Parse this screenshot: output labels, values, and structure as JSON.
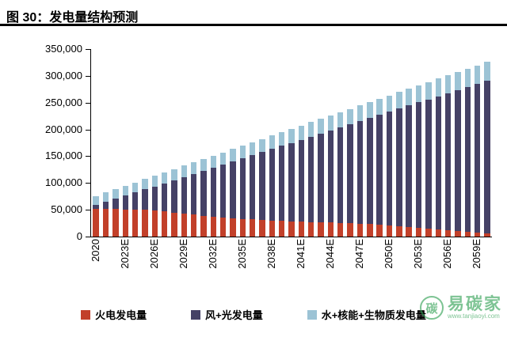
{
  "title": "图 30：发电量结构预测",
  "watermark": {
    "logo_char": "碳",
    "text": "易碳家",
    "url": "www.tanjiaoyi.com"
  },
  "chart_data": {
    "type": "bar",
    "stacked": true,
    "title": "发电量结构预测",
    "xlabel": "",
    "ylabel": "",
    "ylim": [
      0,
      350000
    ],
    "ytick_interval": 50000,
    "ytick_labels": [
      "0",
      "50,000",
      "100,000",
      "150,000",
      "200,000",
      "250,000",
      "300,000",
      "350,000"
    ],
    "grid": false,
    "legend_position": "bottom",
    "categories": [
      "2020",
      "2021E",
      "2022E",
      "2023E",
      "2024E",
      "2025E",
      "2026E",
      "2027E",
      "2028E",
      "2029E",
      "2030E",
      "2031E",
      "2032E",
      "2033E",
      "2034E",
      "2035E",
      "2036E",
      "2037E",
      "2038E",
      "2039E",
      "2040E",
      "2041E",
      "2042E",
      "2043E",
      "2044E",
      "2045E",
      "2046E",
      "2047E",
      "2048E",
      "2049E",
      "2050E",
      "2051E",
      "2052E",
      "2053E",
      "2054E",
      "2055E",
      "2056E",
      "2057E",
      "2058E",
      "2059E",
      "2060E"
    ],
    "xtick_shown": [
      "2020",
      "2023E",
      "2026E",
      "2029E",
      "2032E",
      "2035E",
      "2038E",
      "2041E",
      "2044E",
      "2047E",
      "2050E",
      "2053E",
      "2056E",
      "2059E"
    ],
    "xtick_step": 3,
    "series": [
      {
        "key": "thermal",
        "name": "火电发电量",
        "color": "#c2402a",
        "values": [
          52000,
          51500,
          51000,
          50500,
          50000,
          49500,
          49000,
          47000,
          45000,
          43000,
          41000,
          39000,
          37500,
          36000,
          34500,
          33000,
          32000,
          31000,
          30000,
          29000,
          28000,
          27500,
          27000,
          26500,
          26000,
          25500,
          25000,
          24000,
          23000,
          22000,
          21000,
          19500,
          18000,
          16500,
          15000,
          13500,
          12000,
          10500,
          9000,
          7500,
          6000
        ]
      },
      {
        "key": "wind-solar",
        "name": "风+光发电量",
        "color": "#454166",
        "values": [
          7000,
          13300,
          19600,
          25900,
          32200,
          38500,
          44800,
          52600,
          60400,
          68200,
          76000,
          83800,
          91100,
          98400,
          105700,
          113000,
          119800,
          126600,
          133400,
          140200,
          147000,
          153300,
          159600,
          165900,
          172200,
          178500,
          184800,
          191600,
          198400,
          205200,
          212000,
          219300,
          226600,
          233900,
          241200,
          248500,
          255800,
          263100,
          270400,
          277700,
          285000
        ]
      },
      {
        "key": "hydro-nuclear-bio",
        "name": "水+核能+生物质发电量",
        "color": "#9cc3d5",
        "values": [
          17000,
          17450,
          17900,
          18350,
          18800,
          19250,
          19700,
          20150,
          20600,
          21050,
          21500,
          21950,
          22400,
          22850,
          23300,
          23750,
          24200,
          24650,
          25100,
          25550,
          26000,
          26450,
          26900,
          27350,
          27800,
          28250,
          28700,
          29150,
          29600,
          30050,
          30500,
          30950,
          31400,
          31850,
          32300,
          32750,
          33200,
          33650,
          34100,
          34550,
          35000
        ]
      }
    ]
  }
}
